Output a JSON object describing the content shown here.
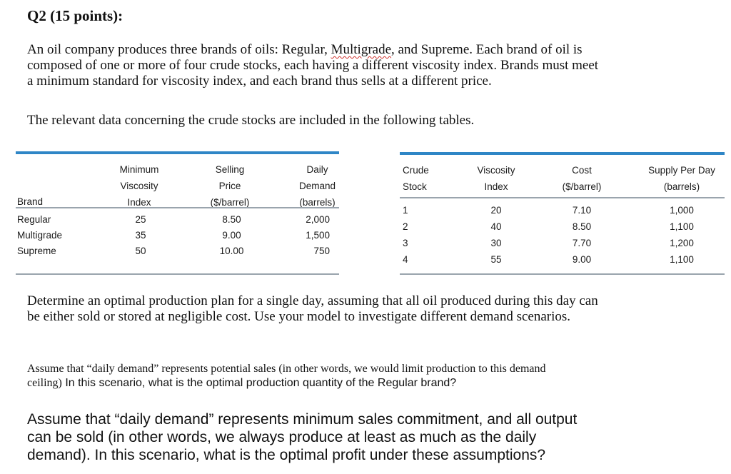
{
  "question": {
    "title": "Q2 (15 points):",
    "intro_lines": [
      "An oil company produces three brands of oils: Regular, ",
      "Multigrade",
      ", and Supreme. Each brand of oil is",
      "composed of one or more of four crude stocks, each having a different viscosity index. Brands must meet",
      "a minimum standard for viscosity index, and each brand thus sells at a different price."
    ],
    "data_sentence": "The relevant data concerning the crude stocks are included in the following tables.",
    "determine_lines": [
      "Determine an optimal production plan for a single day, assuming that all oil produced during this day can",
      "be either sold or stored at negligible cost. Use your model to investigate different demand scenarios."
    ],
    "scenario1_serif": "Assume that “daily demand” represents potential sales (in other words, we would limit production to this demand",
    "scenario1_serif2": "ceiling)",
    "scenario1_sans": " In this scenario, what is the optimal production quantity of the Regular brand?",
    "scenario2_lines": [
      "Assume that “daily demand” represents minimum sales commitment, and all output",
      "can be sold (in other words, we always produce at least as much as the daily",
      "demand). In this scenario, what is the optimal profit under these assumptions?"
    ]
  },
  "brand_table": {
    "headers": {
      "brand": "Brand",
      "min_visc": [
        "Minimum",
        "Viscosity",
        "Index"
      ],
      "price": [
        "Selling",
        "Price",
        "($/barrel)"
      ],
      "demand": [
        "Daily",
        "Demand",
        "(barrels)"
      ]
    },
    "rows": [
      {
        "brand": "Regular",
        "min_visc": "25",
        "price": "8.50",
        "demand": "2,000"
      },
      {
        "brand": "Multigrade",
        "min_visc": "35",
        "price": "9.00",
        "demand": "1,500"
      },
      {
        "brand": "Supreme",
        "min_visc": "50",
        "price": "10.00",
        "demand": "750"
      }
    ]
  },
  "crude_table": {
    "headers": {
      "stock": [
        "Crude",
        "Stock"
      ],
      "visc": [
        "Viscosity",
        "Index"
      ],
      "cost": [
        "Cost",
        "($/barrel)"
      ],
      "supply": [
        "Supply Per Day",
        "(barrels)"
      ]
    },
    "rows": [
      {
        "stock": "1",
        "visc": "20",
        "cost": "7.10",
        "supply": "1,000"
      },
      {
        "stock": "2",
        "visc": "40",
        "cost": "8.50",
        "supply": "1,100"
      },
      {
        "stock": "3",
        "visc": "30",
        "cost": "7.70",
        "supply": "1,200"
      },
      {
        "stock": "4",
        "visc": "55",
        "cost": "9.00",
        "supply": "1,100"
      }
    ]
  },
  "colors": {
    "rule_blue": "#2f86c6",
    "rule_gray": "#9aa4ad",
    "spell_underline": "#d0312d"
  }
}
